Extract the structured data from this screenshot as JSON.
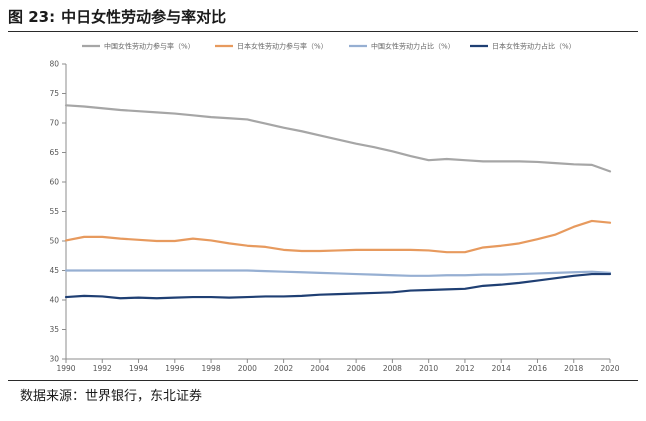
{
  "figure": {
    "label": "图 23:",
    "title": "中日女性劳动参与率对比"
  },
  "source": "数据来源：世界银行，东北证券",
  "chart_data": {
    "type": "line",
    "title": "",
    "xlabel": "",
    "ylabel": "",
    "ylim": [
      30,
      80
    ],
    "yticks": [
      30,
      35,
      40,
      45,
      50,
      55,
      60,
      65,
      70,
      75,
      80
    ],
    "xlim": [
      1990,
      2020
    ],
    "xticks": [
      1990,
      1992,
      1994,
      1996,
      1998,
      2000,
      2002,
      2004,
      2006,
      2008,
      2010,
      2012,
      2014,
      2016,
      2018,
      2020
    ],
    "grid": false,
    "legend_position": "top",
    "x": [
      1990,
      1991,
      1992,
      1993,
      1994,
      1995,
      1996,
      1997,
      1998,
      1999,
      2000,
      2001,
      2002,
      2003,
      2004,
      2005,
      2006,
      2007,
      2008,
      2009,
      2010,
      2011,
      2012,
      2013,
      2014,
      2015,
      2016,
      2017,
      2018,
      2019,
      2020
    ],
    "series": [
      {
        "name": "中国女性劳动力参与率（%）",
        "color": "#a6a6a6",
        "values": [
          73.0,
          72.8,
          72.5,
          72.2,
          72.0,
          71.8,
          71.6,
          71.3,
          71.0,
          70.8,
          70.6,
          69.9,
          69.2,
          68.6,
          67.9,
          67.2,
          66.5,
          65.9,
          65.2,
          64.4,
          63.7,
          63.9,
          63.7,
          63.5,
          63.5,
          63.5,
          63.4,
          63.2,
          63.0,
          62.9,
          61.8
        ]
      },
      {
        "name": "日本女性劳动力参与率（%）",
        "color": "#e79a5e",
        "values": [
          50.1,
          50.7,
          50.7,
          50.4,
          50.2,
          50.0,
          50.0,
          50.4,
          50.1,
          49.6,
          49.2,
          49.0,
          48.5,
          48.3,
          48.3,
          48.4,
          48.5,
          48.5,
          48.5,
          48.5,
          48.4,
          48.1,
          48.1,
          48.9,
          49.2,
          49.6,
          50.3,
          51.1,
          52.4,
          53.4,
          53.1
        ]
      },
      {
        "name": "中国女性劳动力占比（%）",
        "color": "#96afd2",
        "values": [
          45.0,
          45.0,
          45.0,
          45.0,
          45.0,
          45.0,
          45.0,
          45.0,
          45.0,
          45.0,
          45.0,
          44.9,
          44.8,
          44.7,
          44.6,
          44.5,
          44.4,
          44.3,
          44.2,
          44.1,
          44.1,
          44.2,
          44.2,
          44.3,
          44.3,
          44.4,
          44.5,
          44.6,
          44.7,
          44.8,
          44.6
        ]
      },
      {
        "name": "日本女性劳动力占比（%）",
        "color": "#1f3f73",
        "values": [
          40.5,
          40.7,
          40.6,
          40.3,
          40.4,
          40.3,
          40.4,
          40.5,
          40.5,
          40.4,
          40.5,
          40.6,
          40.6,
          40.7,
          40.9,
          41.0,
          41.1,
          41.2,
          41.3,
          41.6,
          41.7,
          41.8,
          41.9,
          42.4,
          42.6,
          42.9,
          43.3,
          43.7,
          44.1,
          44.4,
          44.4
        ]
      }
    ]
  }
}
